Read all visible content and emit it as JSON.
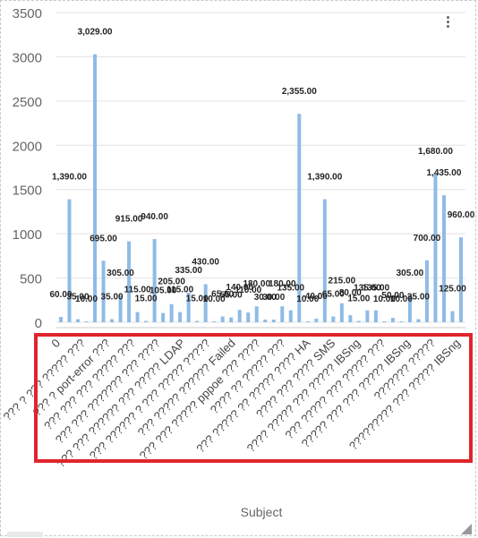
{
  "chart_data": {
    "type": "bar",
    "title": "",
    "xlabel": "Subject",
    "ylabel": "",
    "ylim": [
      0,
      3500
    ],
    "y_ticks": [
      "0",
      "500",
      "1000",
      "1500",
      "2000",
      "2500",
      "3000",
      "3500"
    ],
    "grid": true,
    "bar_color": "#8fbbe6",
    "values": [
      60,
      1390,
      35,
      10,
      3029,
      695,
      35,
      305,
      915,
      115,
      15,
      940,
      105,
      205,
      115,
      335,
      15,
      430,
      10,
      65,
      55,
      140,
      110,
      180,
      30,
      30,
      180,
      135,
      2355,
      10,
      40,
      1390,
      65,
      215,
      80,
      15,
      135,
      135,
      10,
      50,
      10,
      305,
      35,
      700,
      1680,
      1435,
      125,
      960
    ],
    "data_labels": [
      "60.00",
      "1,390.00",
      "35.00",
      "10.00",
      "3,029.00",
      "695.00",
      "35.00",
      "305.00",
      "915.00",
      "115.00",
      "15.00",
      "940.00",
      "105.00",
      "205.00",
      "115.00",
      "335.00",
      "15.00",
      "430.00",
      "10.00",
      "65.00",
      "55.00",
      "140.00",
      "110.00",
      "180.00",
      "30.00",
      "30.00",
      "180.00",
      "135.00",
      "2,355.00",
      "10.00",
      "40.00",
      "1,390.00",
      "65.00",
      "215.00",
      "80.00",
      "15.00",
      "135.00",
      "135.00",
      "10.00",
      "50.00",
      "10.00",
      "305.00",
      "35.00",
      "700.00",
      "1,680.00",
      "1,435.00",
      "125.00",
      "960.00"
    ],
    "x_tick_labels": [
      "0",
      "??? ? ??? ????? ???",
      "??? ? port-error ???",
      "??? ??? ??? ????? ???",
      "??? ??? ??????? ??? ????",
      "??? ??? ?????? ??? ????? LDAP",
      "??? ?????? ? ??? ????? ?????",
      "??? ????? ?????? Failed",
      "??? ??? ????? pppoe ??? ????",
      "???? ?? ????? ???",
      "??? ????? ?? ????? ???? HA",
      "???? ??? ???? SMS",
      "???? ????? ??? ????? IBSng",
      "??? ????? ??? ????? ???",
      "????? ??? ??? ????? IBSng",
      "??????? ?????",
      "????????? ??? ????? IBSng"
    ]
  },
  "menu": {
    "icon": "vertical-ellipsis-icon"
  },
  "annotation": {
    "color": "#e0252a"
  }
}
